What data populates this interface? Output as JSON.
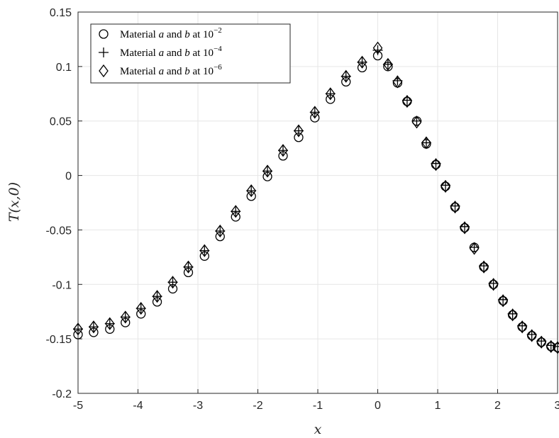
{
  "chart_data": {
    "type": "scatter",
    "xlabel": "x",
    "ylabel": "T(x,0)",
    "xlim": [
      -5,
      3
    ],
    "ylim": [
      -0.2,
      0.15
    ],
    "xticks": [
      "-5",
      "-4",
      "-3",
      "-2",
      "-1",
      "0",
      "1",
      "2",
      "3"
    ],
    "yticks": [
      "0.15",
      "0.1",
      "0.05",
      "0",
      "-0.05",
      "-0.1",
      "-0.15",
      "-0.2"
    ],
    "grid": true,
    "legend_position": "top-left",
    "series": [
      {
        "name": "Material a and b at 10^-2",
        "legend": {
          "pre": "Material ",
          "a": "a",
          "mid": " and ",
          "b": "b",
          "post": " at 10",
          "exp": "−2"
        },
        "marker": "circle",
        "points": [
          [
            -5.0,
            -0.146
          ],
          [
            -4.74,
            -0.144
          ],
          [
            -4.47,
            -0.141
          ],
          [
            -4.21,
            -0.135
          ],
          [
            -3.95,
            -0.127
          ],
          [
            -3.68,
            -0.116
          ],
          [
            -3.42,
            -0.104
          ],
          [
            -3.16,
            -0.089
          ],
          [
            -2.89,
            -0.074
          ],
          [
            -2.63,
            -0.056
          ],
          [
            -2.37,
            -0.038
          ],
          [
            -2.11,
            -0.019
          ],
          [
            -1.84,
            -0.001
          ],
          [
            -1.58,
            0.018
          ],
          [
            -1.32,
            0.035
          ],
          [
            -1.05,
            0.053
          ],
          [
            -0.79,
            0.07
          ],
          [
            -0.53,
            0.086
          ],
          [
            -0.26,
            0.099
          ],
          [
            0.0,
            0.11
          ],
          [
            0.17,
            0.1
          ],
          [
            0.33,
            0.085
          ],
          [
            0.49,
            0.068
          ],
          [
            0.65,
            0.05
          ],
          [
            0.81,
            0.029
          ],
          [
            0.97,
            0.01
          ],
          [
            1.13,
            -0.01
          ],
          [
            1.29,
            -0.029
          ],
          [
            1.45,
            -0.048
          ],
          [
            1.61,
            -0.066
          ],
          [
            1.77,
            -0.084
          ],
          [
            1.93,
            -0.1
          ],
          [
            2.09,
            -0.115
          ],
          [
            2.25,
            -0.128
          ],
          [
            2.41,
            -0.139
          ],
          [
            2.57,
            -0.147
          ],
          [
            2.73,
            -0.153
          ],
          [
            2.89,
            -0.157
          ],
          [
            3.0,
            -0.158
          ]
        ]
      },
      {
        "name": "Material a and b at 10^-4",
        "legend": {
          "pre": "Material ",
          "a": "a",
          "mid": " and ",
          "b": "b",
          "post": " at 10",
          "exp": "−4"
        },
        "marker": "plus",
        "points": [
          [
            -5.0,
            -0.141
          ],
          [
            -4.74,
            -0.139
          ],
          [
            -4.47,
            -0.136
          ],
          [
            -4.21,
            -0.13
          ],
          [
            -3.95,
            -0.122
          ],
          [
            -3.68,
            -0.111
          ],
          [
            -3.42,
            -0.098
          ],
          [
            -3.16,
            -0.084
          ],
          [
            -2.89,
            -0.069
          ],
          [
            -2.63,
            -0.051
          ],
          [
            -2.37,
            -0.033
          ],
          [
            -2.11,
            -0.014
          ],
          [
            -1.84,
            0.004
          ],
          [
            -1.58,
            0.023
          ],
          [
            -1.32,
            0.041
          ],
          [
            -1.05,
            0.058
          ],
          [
            -0.79,
            0.075
          ],
          [
            -0.53,
            0.091
          ],
          [
            -0.26,
            0.104
          ],
          [
            0.0,
            0.115
          ],
          [
            0.17,
            0.102
          ],
          [
            0.33,
            0.087
          ],
          [
            0.49,
            0.069
          ],
          [
            0.65,
            0.05
          ],
          [
            0.81,
            0.03
          ],
          [
            0.97,
            0.011
          ],
          [
            1.13,
            -0.009
          ],
          [
            1.29,
            -0.028
          ],
          [
            1.45,
            -0.047
          ],
          [
            1.61,
            -0.066
          ],
          [
            1.77,
            -0.083
          ],
          [
            1.93,
            -0.099
          ],
          [
            2.09,
            -0.114
          ],
          [
            2.25,
            -0.127
          ],
          [
            2.41,
            -0.138
          ],
          [
            2.57,
            -0.146
          ],
          [
            2.73,
            -0.152
          ],
          [
            2.89,
            -0.156
          ],
          [
            3.0,
            -0.157
          ]
        ]
      },
      {
        "name": "Material a and b at 10^-6",
        "legend": {
          "pre": "Material ",
          "a": "a",
          "mid": " and ",
          "b": "b",
          "post": " at 10",
          "exp": "−6"
        },
        "marker": "diamond",
        "points": [
          [
            -5.0,
            -0.141
          ],
          [
            -4.74,
            -0.139
          ],
          [
            -4.47,
            -0.136
          ],
          [
            -4.21,
            -0.13
          ],
          [
            -3.95,
            -0.122
          ],
          [
            -3.68,
            -0.111
          ],
          [
            -3.42,
            -0.098
          ],
          [
            -3.16,
            -0.084
          ],
          [
            -2.89,
            -0.069
          ],
          [
            -2.63,
            -0.051
          ],
          [
            -2.37,
            -0.033
          ],
          [
            -2.11,
            -0.014
          ],
          [
            -1.84,
            0.004
          ],
          [
            -1.58,
            0.023
          ],
          [
            -1.32,
            0.041
          ],
          [
            -1.05,
            0.058
          ],
          [
            -0.79,
            0.075
          ],
          [
            -0.53,
            0.091
          ],
          [
            -0.26,
            0.104
          ],
          [
            0.0,
            0.117
          ],
          [
            0.17,
            0.102
          ],
          [
            0.33,
            0.086
          ],
          [
            0.49,
            0.068
          ],
          [
            0.65,
            0.049
          ],
          [
            0.81,
            0.03
          ],
          [
            0.97,
            0.01
          ],
          [
            1.13,
            -0.01
          ],
          [
            1.29,
            -0.029
          ],
          [
            1.45,
            -0.048
          ],
          [
            1.61,
            -0.067
          ],
          [
            1.77,
            -0.084
          ],
          [
            1.93,
            -0.1
          ],
          [
            2.09,
            -0.115
          ],
          [
            2.25,
            -0.128
          ],
          [
            2.41,
            -0.139
          ],
          [
            2.57,
            -0.147
          ],
          [
            2.73,
            -0.153
          ],
          [
            2.89,
            -0.157
          ],
          [
            3.0,
            -0.158
          ]
        ]
      }
    ]
  }
}
